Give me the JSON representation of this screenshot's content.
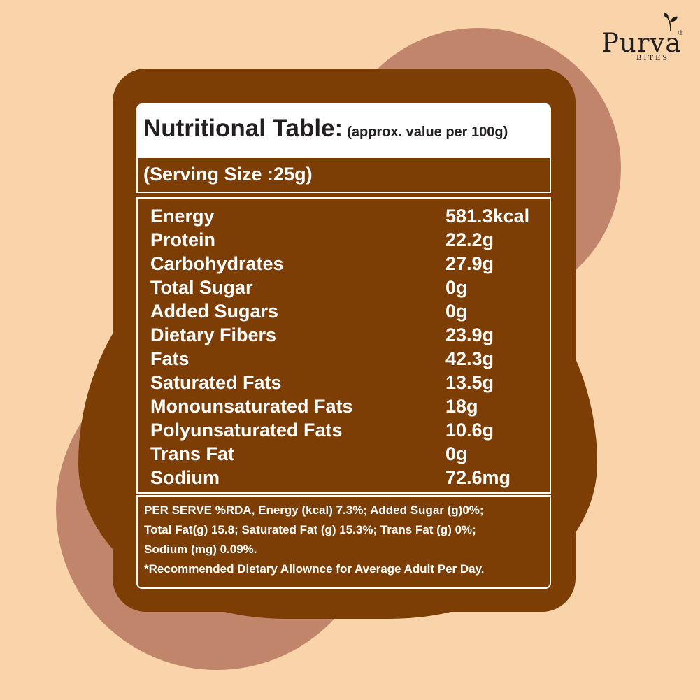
{
  "brand": {
    "name": "Purva",
    "sub": "BITES",
    "reg": "®"
  },
  "title": {
    "main": "Nutritional Table:",
    "sub": "(approx. value per 100g)"
  },
  "serving": "(Serving Size :25g)",
  "nutrients": [
    {
      "name": "Energy",
      "value": "581.3kcal"
    },
    {
      "name": "Protein",
      "value": "22.2g"
    },
    {
      "name": "Carbohydrates",
      "value": "27.9g"
    },
    {
      "name": "Total Sugar",
      "value": "0g"
    },
    {
      "name": "Added Sugars",
      "value": "0g"
    },
    {
      "name": "Dietary Fibers",
      "value": "23.9g"
    },
    {
      "name": "Fats",
      "value": "42.3g"
    },
    {
      "name": "Saturated Fats",
      "value": "13.5g"
    },
    {
      "name": "Monounsaturated Fats",
      "value": "18g"
    },
    {
      "name": "Polyunsaturated Fats",
      "value": "10.6g"
    },
    {
      "name": "Trans Fat",
      "value": "0g"
    },
    {
      "name": "Sodium",
      "value": "72.6mg"
    }
  ],
  "footnote": [
    "PER SERVE %RDA, Energy (kcal)   7.3%; Added Sugar (g)0%;",
    "Total Fat(g) 15.8; Saturated Fat (g) 15.3%; Trans Fat (g) 0%;",
    "Sodium (mg) 0.09%.",
    "*Recommended Dietary Allownce for Average Adult Per Day."
  ],
  "colors": {
    "background": "#f9d4aa",
    "circle": "#c0856a",
    "panel": "#7d3e05",
    "text_light": "#ffffff",
    "text_dark": "#231f20"
  },
  "icons": {
    "logo": "leaf-icon"
  }
}
